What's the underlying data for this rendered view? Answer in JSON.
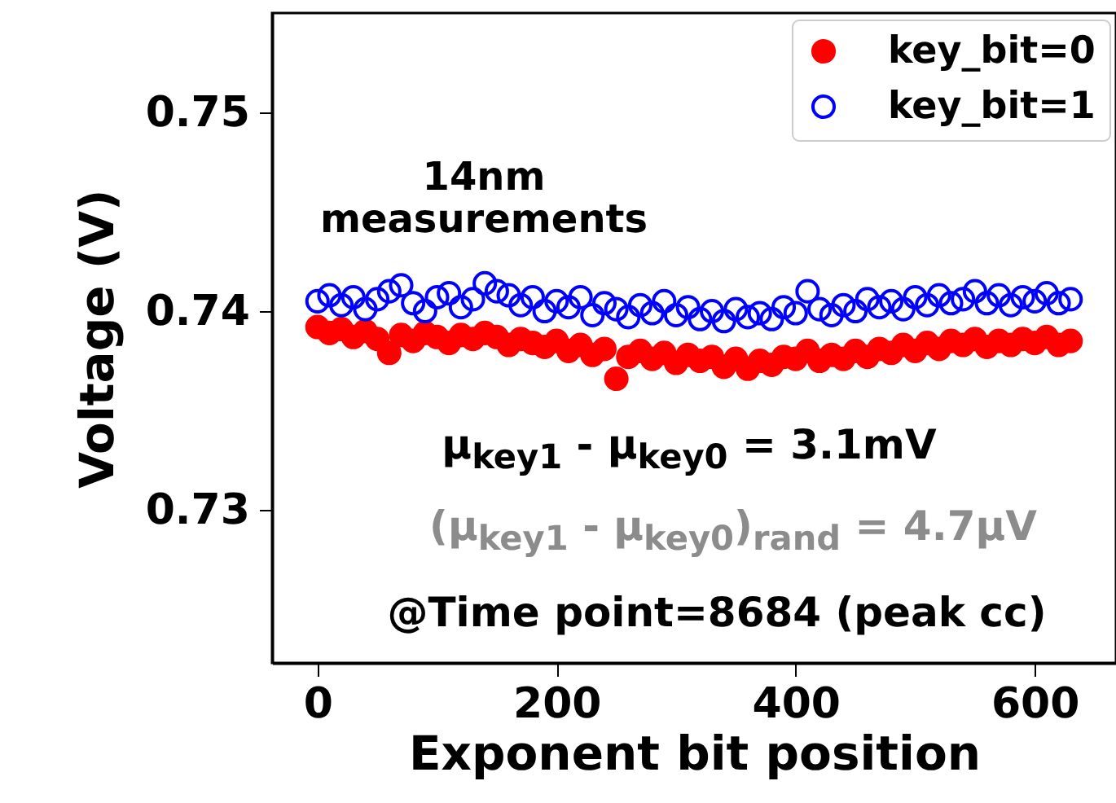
{
  "chart_data": {
    "type": "scatter",
    "xlabel": "Exponent bit position",
    "ylabel": "Voltage (V)",
    "x": [
      0,
      10,
      20,
      30,
      40,
      50,
      60,
      70,
      80,
      90,
      100,
      110,
      120,
      130,
      140,
      150,
      160,
      170,
      180,
      190,
      200,
      210,
      220,
      230,
      240,
      250,
      260,
      270,
      280,
      290,
      300,
      310,
      320,
      330,
      340,
      350,
      360,
      370,
      380,
      390,
      400,
      410,
      420,
      430,
      440,
      450,
      460,
      470,
      480,
      490,
      500,
      510,
      520,
      530,
      540,
      550,
      560,
      570,
      580,
      590,
      600,
      610,
      620,
      630
    ],
    "series": [
      {
        "name": "key_bit=0",
        "color": "#ff0000",
        "values": [
          0.7392,
          0.7389,
          0.7391,
          0.7387,
          0.739,
          0.7386,
          0.7379,
          0.7388,
          0.7385,
          0.7389,
          0.7387,
          0.7384,
          0.7388,
          0.7386,
          0.7389,
          0.7387,
          0.7383,
          0.7386,
          0.7384,
          0.7382,
          0.7385,
          0.738,
          0.7383,
          0.7378,
          0.7381,
          0.7366,
          0.7377,
          0.738,
          0.7376,
          0.7379,
          0.7374,
          0.7378,
          0.7375,
          0.7377,
          0.7372,
          0.7376,
          0.7371,
          0.7375,
          0.7373,
          0.7377,
          0.7376,
          0.738,
          0.7375,
          0.7378,
          0.7376,
          0.738,
          0.7377,
          0.7381,
          0.7379,
          0.7383,
          0.738,
          0.7384,
          0.7381,
          0.7385,
          0.7383,
          0.7386,
          0.7382,
          0.7385,
          0.7383,
          0.7386,
          0.7384,
          0.7387,
          0.7383,
          0.7385
        ]
      },
      {
        "name": "key_bit=1",
        "color": "#0000ff",
        "values": [
          0.7405,
          0.7408,
          0.7403,
          0.7407,
          0.7401,
          0.7406,
          0.741,
          0.7413,
          0.7404,
          0.74,
          0.7407,
          0.7409,
          0.7402,
          0.7406,
          0.7414,
          0.741,
          0.7408,
          0.7403,
          0.7407,
          0.74,
          0.7405,
          0.7402,
          0.7407,
          0.7398,
          0.7404,
          0.7401,
          0.7397,
          0.7403,
          0.7399,
          0.7405,
          0.7398,
          0.7402,
          0.7396,
          0.74,
          0.7395,
          0.7401,
          0.7397,
          0.7399,
          0.7396,
          0.7402,
          0.7399,
          0.741,
          0.7401,
          0.7398,
          0.7403,
          0.74,
          0.7406,
          0.7402,
          0.7405,
          0.7401,
          0.7407,
          0.7403,
          0.7408,
          0.7404,
          0.7406,
          0.741,
          0.7404,
          0.7408,
          0.7403,
          0.7407,
          0.7405,
          0.7409,
          0.7404,
          0.7406
        ]
      }
    ],
    "xlim": [
      -38,
      668
    ],
    "xticks": [
      0,
      200,
      400,
      600
    ],
    "ylim": [
      0.7223,
      0.755
    ],
    "yticks": [
      0.73,
      0.74,
      0.75
    ],
    "grid": false,
    "legend": "top right",
    "marker": "circle",
    "annotations": [
      "14nm\nmeasurements",
      "μ$_{key1}$ - μ$_{key0}$ = 3.1mV",
      "(μ$_{key1}$ - μ$_{key0}$)$_{rand}$ = 4.7μV",
      "@Time point=8684 (peak cc)"
    ]
  }
}
